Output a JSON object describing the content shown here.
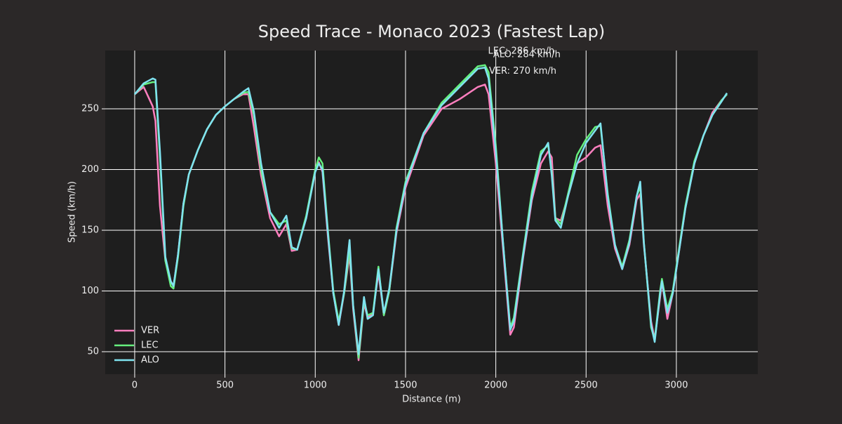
{
  "chart_data": {
    "type": "line",
    "title": "Speed Trace - Monaco 2023 (Fastest Lap)",
    "x_label": "Distance (m)",
    "y_label": "Speed (km/h)",
    "x": [
      0,
      50,
      100,
      115,
      140,
      170,
      200,
      215,
      240,
      270,
      300,
      350,
      400,
      450,
      500,
      550,
      600,
      630,
      660,
      700,
      750,
      800,
      840,
      870,
      900,
      950,
      1000,
      1020,
      1040,
      1070,
      1100,
      1130,
      1160,
      1190,
      1210,
      1240,
      1270,
      1290,
      1320,
      1350,
      1380,
      1410,
      1450,
      1500,
      1600,
      1700,
      1800,
      1900,
      1940,
      1960,
      2000,
      2040,
      2080,
      2100,
      2150,
      2200,
      2250,
      2290,
      2310,
      2330,
      2360,
      2400,
      2450,
      2500,
      2550,
      2580,
      2620,
      2660,
      2700,
      2740,
      2780,
      2800,
      2820,
      2860,
      2880,
      2910,
      2920,
      2950,
      2980,
      3050,
      3100,
      3150,
      3200,
      3250,
      3280
    ],
    "series": [
      {
        "name": "VER",
        "color": "#ff7fbf",
        "values": [
          262,
          268,
          252,
          240,
          170,
          125,
          108,
          104,
          130,
          172,
          196,
          216,
          233,
          245,
          252,
          258,
          262,
          262,
          235,
          195,
          160,
          145,
          155,
          133,
          134,
          160,
          200,
          206,
          198,
          145,
          98,
          72,
          98,
          130,
          85,
          43,
          90,
          78,
          82,
          115,
          80,
          100,
          148,
          185,
          228,
          250,
          258,
          268,
          270,
          262,
          205,
          135,
          64,
          70,
          126,
          175,
          205,
          215,
          210,
          160,
          158,
          178,
          205,
          210,
          218,
          220,
          170,
          135,
          118,
          138,
          175,
          180,
          138,
          75,
          60,
          95,
          108,
          77,
          98,
          168,
          205,
          228,
          247,
          257,
          262
        ]
      },
      {
        "name": "LEC",
        "color": "#66f07e",
        "values": [
          262,
          270,
          272,
          272,
          210,
          125,
          104,
          102,
          128,
          170,
          196,
          216,
          233,
          245,
          252,
          258,
          263,
          264,
          245,
          200,
          165,
          155,
          158,
          135,
          134,
          162,
          200,
          210,
          205,
          150,
          100,
          75,
          98,
          135,
          88,
          45,
          92,
          80,
          82,
          120,
          80,
          100,
          152,
          190,
          230,
          255,
          270,
          285,
          286,
          280,
          220,
          140,
          70,
          78,
          130,
          182,
          215,
          220,
          198,
          160,
          155,
          180,
          212,
          225,
          235,
          236,
          180,
          138,
          120,
          142,
          178,
          186,
          140,
          70,
          60,
          100,
          110,
          85,
          100,
          170,
          207,
          228,
          245,
          257,
          262
        ]
      },
      {
        "name": "ALO",
        "color": "#7fe3f0",
        "values": [
          262,
          271,
          275,
          274,
          215,
          128,
          108,
          104,
          130,
          172,
          196,
          216,
          233,
          245,
          252,
          258,
          264,
          267,
          248,
          205,
          165,
          152,
          162,
          136,
          134,
          160,
          198,
          205,
          200,
          148,
          98,
          72,
          100,
          142,
          88,
          48,
          95,
          77,
          80,
          118,
          82,
          102,
          150,
          188,
          230,
          253,
          268,
          283,
          284,
          275,
          215,
          140,
          68,
          75,
          128,
          178,
          212,
          222,
          195,
          158,
          152,
          178,
          205,
          222,
          232,
          238,
          178,
          138,
          118,
          140,
          178,
          190,
          140,
          72,
          58,
          98,
          108,
          82,
          98,
          168,
          205,
          228,
          245,
          256,
          263
        ]
      }
    ],
    "annotations": [
      {
        "text": "LEC: 286 km/h",
        "x": 2141,
        "y": 297.5
      },
      {
        "text": "ALO: 284 km/h",
        "x": 2172,
        "y": 294.6
      },
      {
        "text": "VER: 270 km/h",
        "x": 2149,
        "y": 281
      }
    ],
    "xlim": [
      -163,
      3451
    ],
    "ylim": [
      31.5,
      298
    ],
    "xticks": [
      0,
      500,
      1000,
      1500,
      2000,
      2500,
      3000
    ],
    "yticks": [
      50,
      100,
      150,
      200,
      250
    ],
    "grid": true,
    "legend": "lower left"
  }
}
